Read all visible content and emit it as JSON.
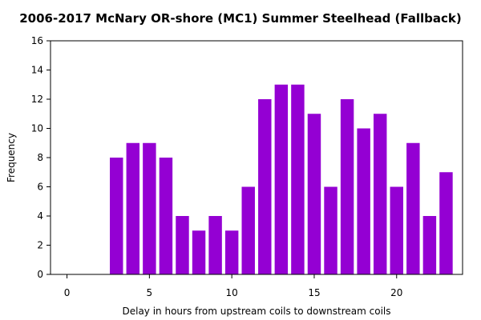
{
  "chart_data": {
    "type": "bar",
    "title": "2006-2017 McNary OR-shore (MC1) Summer Steelhead (Fallback)",
    "xlabel": "Delay in hours from upstream coils to downstream coils",
    "ylabel": "Frequency",
    "x": [
      3,
      4,
      5,
      6,
      7,
      8,
      9,
      10,
      11,
      12,
      13,
      14,
      15,
      16,
      17,
      18,
      19,
      20,
      21,
      22,
      23
    ],
    "values": [
      8,
      9,
      9,
      8,
      4,
      3,
      4,
      3,
      6,
      12,
      13,
      13,
      11,
      6,
      12,
      10,
      11,
      6,
      9,
      4,
      7
    ],
    "xlim": [
      -1,
      24
    ],
    "ylim": [
      0,
      16
    ],
    "xticks": [
      0,
      5,
      10,
      15,
      20
    ],
    "yticks": [
      0,
      2,
      4,
      6,
      8,
      10,
      12,
      14,
      16
    ],
    "grid": false,
    "bar_color": "#9400D3"
  }
}
